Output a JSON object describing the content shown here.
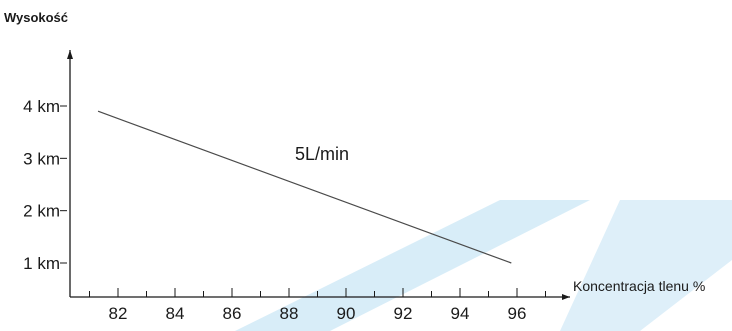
{
  "chart_data": {
    "type": "line",
    "ylabel": "Wysokość",
    "xlabel": "Koncentracja tlenu %",
    "x_ticks": [
      82,
      84,
      86,
      88,
      90,
      92,
      94,
      96
    ],
    "y_ticks": [
      {
        "value": 1,
        "label": "1 km"
      },
      {
        "value": 2,
        "label": "2 km"
      },
      {
        "value": 3,
        "label": "3 km"
      },
      {
        "value": 4,
        "label": "4 km"
      }
    ],
    "series": [
      {
        "name": "5L/min",
        "x": [
          81.3,
          95.8
        ],
        "y": [
          3.9,
          1.0
        ]
      }
    ],
    "annotation": "5L/min",
    "xlim": [
      80,
      97.5
    ],
    "ylim": [
      0,
      4.6
    ],
    "grid": false,
    "colors": {
      "line": "#4a4a4a",
      "axis": "#1a1a1a",
      "text": "#1a1a1a",
      "watermark": "#d6ecf8"
    }
  }
}
